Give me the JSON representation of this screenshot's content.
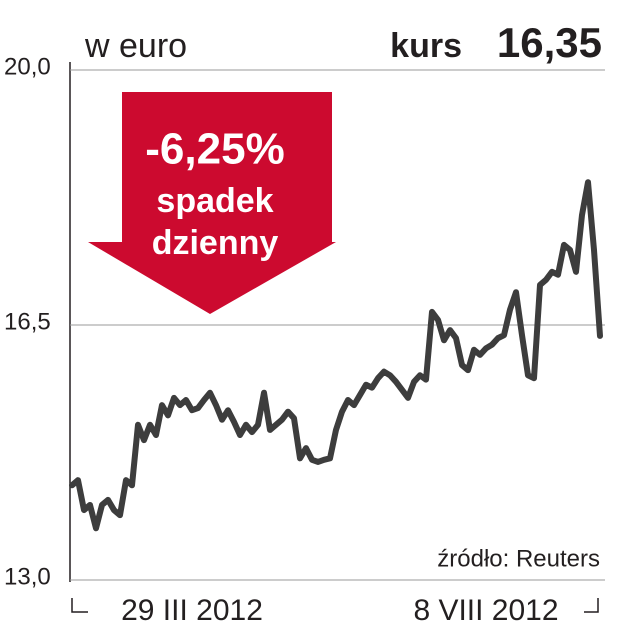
{
  "chart_data": {
    "type": "line",
    "unit_label": "w euro",
    "price_label": "kurs",
    "price": "16,35",
    "annotation": [
      "-6,25%",
      "spadek",
      "dzienny"
    ],
    "source": "źródło: Reuters",
    "values": [
      14.3,
      14.37,
      13.96,
      14.03,
      13.71,
      14.03,
      14.1,
      13.96,
      13.89,
      14.37,
      14.3,
      15.13,
      14.92,
      15.13,
      14.99,
      15.4,
      15.26,
      15.5,
      15.4,
      15.47,
      15.33,
      15.36,
      15.47,
      15.57,
      15.4,
      15.2,
      15.33,
      15.17,
      14.99,
      15.13,
      15.03,
      15.13,
      15.57,
      15.06,
      15.13,
      15.2,
      15.31,
      15.22,
      14.67,
      14.81,
      14.65,
      14.62,
      14.65,
      14.67,
      15.06,
      15.31,
      15.47,
      15.4,
      15.54,
      15.68,
      15.64,
      15.77,
      15.86,
      15.81,
      15.72,
      15.61,
      15.5,
      15.72,
      15.81,
      15.75,
      16.68,
      16.57,
      16.29,
      16.43,
      16.32,
      15.95,
      15.88,
      16.16,
      16.09,
      16.18,
      16.23,
      16.32,
      16.36,
      16.71,
      16.95,
      16.36,
      15.81,
      15.77,
      17.05,
      17.12,
      17.23,
      17.19,
      17.6,
      17.53,
      17.23,
      18.01,
      18.46,
      17.53,
      16.35
    ],
    "color": "#3d3d3d",
    "xlim": [
      0,
      88
    ],
    "xticks": [
      {
        "value": 20,
        "label": "29 III 2012"
      },
      {
        "value": 69,
        "label": "8 VIII 2012"
      }
    ],
    "ylim": [
      13,
      20
    ],
    "yticks": [
      {
        "value": 13,
        "label": "13,0"
      },
      {
        "value": 16.5,
        "label": "16,5"
      },
      {
        "value": 20,
        "label": "20,0"
      }
    ],
    "grid": true,
    "annotation_color": "#cc0a2f"
  }
}
